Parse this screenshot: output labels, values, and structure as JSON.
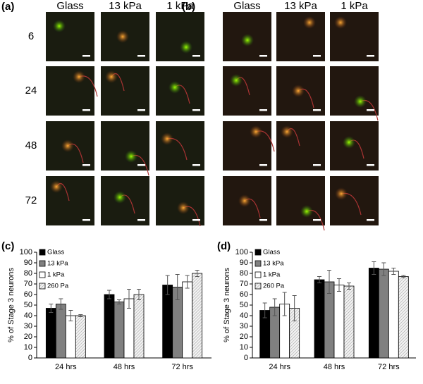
{
  "panels": {
    "a": {
      "label": "(a)",
      "columns": [
        "Glass",
        "13 kPa",
        "1 kPa"
      ],
      "rows": [
        6,
        24,
        48,
        72
      ]
    },
    "b": {
      "label": "(b)",
      "columns": [
        "Glass",
        "13 kPa",
        "1 kPa"
      ]
    }
  },
  "chart_data": [
    {
      "type": "bar",
      "title": "(c)",
      "y_label": "% of Stage 3 neurons",
      "categories": [
        "24 hrs",
        "48 hrs",
        "72 hrs"
      ],
      "series": [
        {
          "name": "Glass",
          "color": "#000000",
          "values": [
            47,
            60,
            69
          ],
          "errors": [
            4,
            4,
            9
          ]
        },
        {
          "name": "13 kPa",
          "color": "#808080",
          "values": [
            51,
            53,
            67
          ],
          "errors": [
            5,
            2,
            12
          ]
        },
        {
          "name": "1 kPa",
          "color": "#ffffff",
          "values": [
            40,
            56,
            72
          ],
          "errors": [
            5,
            9,
            6
          ]
        },
        {
          "name": "260 Pa",
          "color": "#f2f2f2",
          "pattern": "hatch",
          "values": [
            40,
            60,
            80
          ],
          "errors": [
            1,
            5,
            3
          ]
        }
      ],
      "ylim": [
        0,
        100
      ],
      "yticks": [
        0,
        10,
        20,
        30,
        40,
        50,
        60,
        70,
        80,
        90,
        100
      ]
    },
    {
      "type": "bar",
      "title": "(d)",
      "y_label": "% of Stage 3 neurons",
      "categories": [
        "24 hrs",
        "48 hrs",
        "72 hrs"
      ],
      "series": [
        {
          "name": "Glass",
          "color": "#000000",
          "values": [
            45,
            74,
            85
          ],
          "errors": [
            7,
            3,
            6
          ]
        },
        {
          "name": "13 kPa",
          "color": "#808080",
          "values": [
            48,
            72,
            84
          ],
          "errors": [
            8,
            11,
            6
          ]
        },
        {
          "name": "1 kPa",
          "color": "#ffffff",
          "values": [
            51,
            69,
            82
          ],
          "errors": [
            11,
            6,
            3
          ]
        },
        {
          "name": "260 Pa",
          "color": "#f2f2f2",
          "pattern": "hatch",
          "values": [
            47,
            68,
            77
          ],
          "errors": [
            12,
            3,
            1
          ]
        }
      ],
      "ylim": [
        0,
        100
      ],
      "yticks": [
        0,
        10,
        20,
        30,
        40,
        50,
        60,
        70,
        80,
        90,
        100
      ]
    }
  ]
}
